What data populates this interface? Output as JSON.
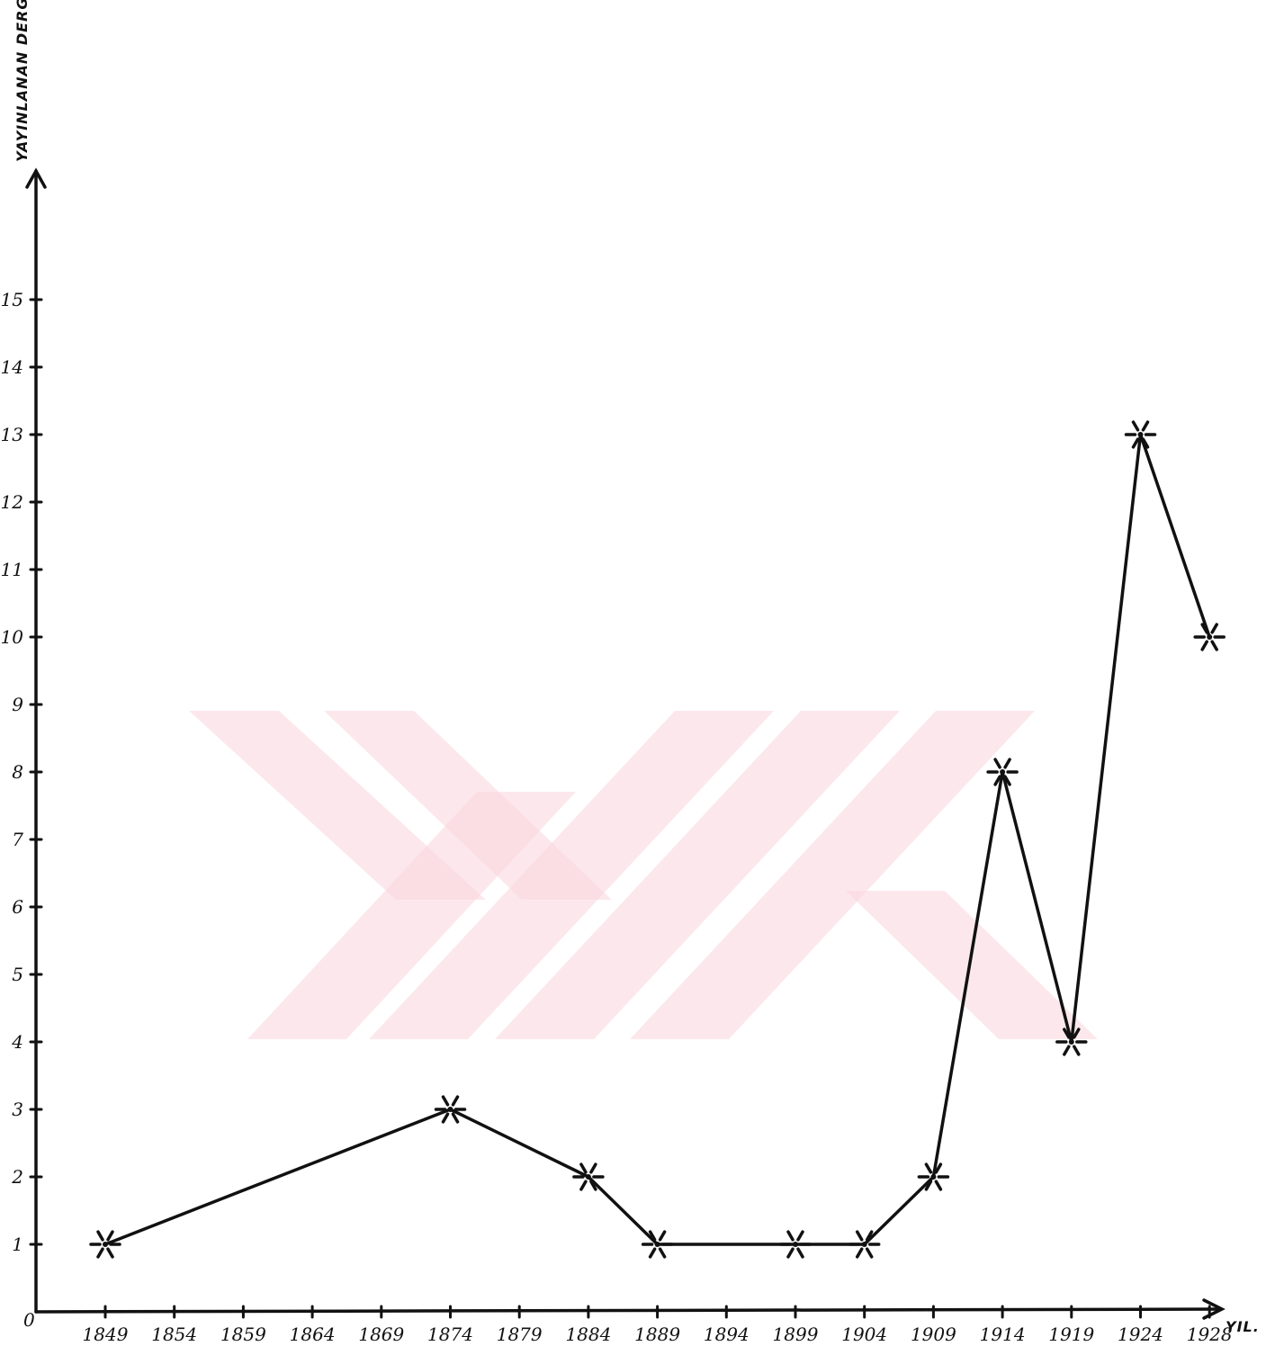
{
  "chart_data": {
    "type": "line",
    "title": "",
    "xlabel": "YIL.",
    "ylabel": "YAYINLANAN DERGİ ADEDİ",
    "origin_label": "0",
    "ylim": [
      0,
      16
    ],
    "y_ticks": [
      1,
      2,
      3,
      4,
      5,
      6,
      7,
      8,
      9,
      10,
      11,
      12,
      13,
      14,
      15
    ],
    "y_tick_labels": [
      "1",
      "2",
      "3",
      "4",
      "5",
      "6",
      "7",
      "8",
      "9",
      "10",
      "11",
      "12",
      "13",
      "14",
      "15"
    ],
    "x_tick_labels": [
      "1849",
      "1854",
      "1859",
      "1864",
      "1869",
      "1874",
      "1879",
      "1884",
      "1889",
      "1894",
      "1899",
      "1904",
      "1909",
      "1914",
      "1919",
      "1924",
      "1928"
    ],
    "series": [
      {
        "x": [
          "1849",
          "1874",
          "1884",
          "1889",
          "1899",
          "1904",
          "1909",
          "1914",
          "1919",
          "1924",
          "1928"
        ],
        "values": [
          1,
          3,
          2,
          1,
          1,
          1,
          2,
          8,
          4,
          13,
          10
        ]
      }
    ],
    "grid": false,
    "legend": "none"
  },
  "colors": {
    "ink": "#111111",
    "watermark": "#f9d6dc",
    "background": "#ffffff"
  }
}
